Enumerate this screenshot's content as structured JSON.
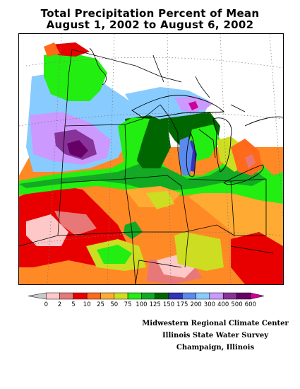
{
  "title_line1": "Total Precipitation Percent of Mean",
  "title_line2": "August 1, 2002 to August 6, 2002",
  "legend": {
    "labels": [
      "0",
      "2",
      "5",
      "10",
      "25",
      "50",
      "75",
      "100",
      "125",
      "150",
      "175",
      "200",
      "300",
      "400",
      "500",
      "600"
    ],
    "colors": [
      "#c8c8c8",
      "#ffc8c8",
      "#e87878",
      "#e80000",
      "#ff6a1a",
      "#ffaa33",
      "#ccdd22",
      "#22ee11",
      "#11aa22",
      "#006600",
      "#3333bb",
      "#5a8aee",
      "#88ccff",
      "#cc99ff",
      "#883399",
      "#660066",
      "#cc0099"
    ]
  },
  "credit": {
    "line1": "Midwestern Regional Climate Center",
    "line2": "Illinois State Water Survey",
    "line3": "Champaign, Illinois"
  }
}
